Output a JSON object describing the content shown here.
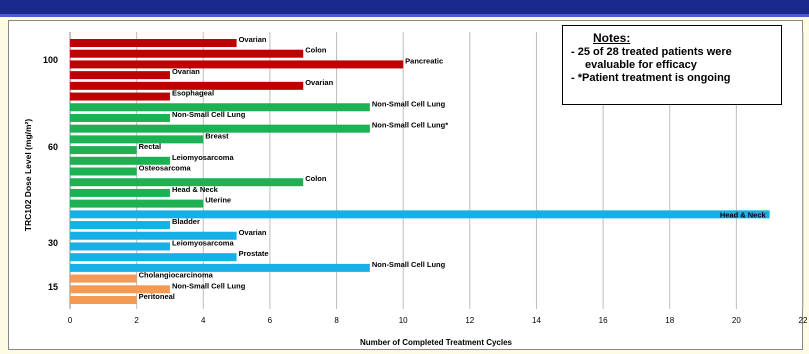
{
  "chart_data": {
    "type": "bar",
    "orientation": "horizontal",
    "xlabel": "Number of  Completed Treatment Cycles",
    "ylabel": "TRC102 Dose Level (mg/m²)",
    "xlim": [
      0,
      22
    ],
    "xticks": [
      "0",
      "2",
      "4",
      "6",
      "8",
      "10",
      "12",
      "14",
      "16",
      "18",
      "20",
      "22"
    ],
    "grid": "vertical",
    "dose_levels": [
      "100",
      "60",
      "30",
      "15"
    ],
    "groups": [
      {
        "dose": "100",
        "color": "#c00000",
        "bars": [
          {
            "label": "Ovarian",
            "value": 5
          },
          {
            "label": "Colon",
            "value": 7
          },
          {
            "label": "Pancreatic",
            "value": 10
          },
          {
            "label": "Ovarian",
            "value": 3
          },
          {
            "label": "Ovarian",
            "value": 7
          },
          {
            "label": "Esophageal",
            "value": 3
          }
        ]
      },
      {
        "dose": "60",
        "color": "#1db154",
        "bars": [
          {
            "label": "Non-Small Cell Lung",
            "value": 9
          },
          {
            "label": "Non-Small Cell Lung",
            "value": 3
          },
          {
            "label": "Non-Small Cell Lung*",
            "value": 9
          },
          {
            "label": "Breast",
            "value": 4
          },
          {
            "label": "Rectal",
            "value": 2
          },
          {
            "label": "Leiomyosarcoma",
            "value": 3
          },
          {
            "label": "Osteosarcoma",
            "value": 2
          },
          {
            "label": "Colon",
            "value": 7
          },
          {
            "label": "Head & Neck",
            "value": 3
          },
          {
            "label": "Uterine",
            "value": 4
          }
        ]
      },
      {
        "dose": "30",
        "color": "#17b0e6",
        "bars": [
          {
            "label": "Head & Neck",
            "value": 21
          },
          {
            "label": "Bladder",
            "value": 3
          },
          {
            "label": "Ovarian",
            "value": 5
          },
          {
            "label": "Leiomyosarcoma",
            "value": 3
          },
          {
            "label": "Prostate",
            "value": 5
          },
          {
            "label": "Non-Small Cell Lung",
            "value": 9
          }
        ]
      },
      {
        "dose": "15",
        "color": "#f39a55",
        "bars": [
          {
            "label": "Cholangiocarcinoma",
            "value": 2
          },
          {
            "label": "Non-Small Cell Lung",
            "value": 3
          },
          {
            "label": "Peritoneal",
            "value": 2
          }
        ]
      }
    ]
  },
  "notes": {
    "title": "Notes:",
    "line1": "-  25 of 28 treated patients were",
    "line1b": "evaluable for efficacy",
    "line2": "- *Patient treatment is ongoing"
  },
  "colors": {
    "header_bar": "#1a2a8c",
    "slide_background": "#fdfbe3"
  }
}
